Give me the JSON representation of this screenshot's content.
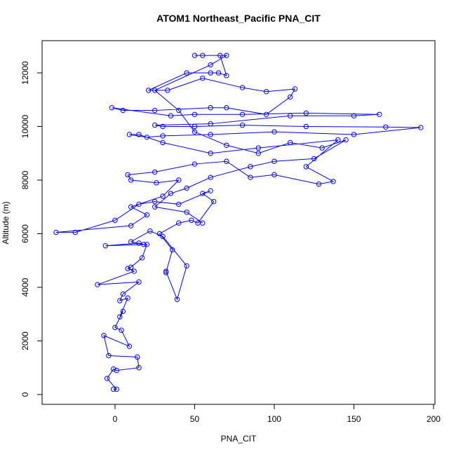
{
  "chart_data": {
    "type": "line",
    "title": "ATOM1 Northeast_Pacific PNA_CIT",
    "x_label": "PNA_CIT",
    "y_label": "Altitude (m)",
    "color": "#0000ff",
    "markers": true,
    "x": [
      -1,
      1,
      -5,
      -1,
      1,
      15,
      14,
      -4,
      -7,
      9,
      4,
      0,
      5,
      3,
      8,
      3,
      5,
      15,
      -11,
      12,
      8,
      10,
      17,
      20,
      -6,
      15,
      18,
      10,
      22,
      30,
      45,
      39,
      32,
      32,
      36,
      28,
      40,
      48,
      52,
      62,
      55,
      60,
      40,
      25,
      15,
      0,
      -25,
      -37,
      10,
      20,
      10,
      30,
      40,
      26,
      10,
      8,
      25,
      50,
      70,
      85,
      100,
      128,
      137,
      120,
      140,
      90,
      60,
      30,
      15,
      9,
      20,
      30,
      60,
      100,
      150,
      192,
      170,
      120,
      80,
      50,
      30,
      25,
      60,
      110,
      150,
      166,
      120,
      80,
      50,
      35,
      -2,
      5,
      25,
      60,
      70,
      95,
      110,
      113,
      95,
      80,
      55,
      33,
      21,
      45,
      60,
      65,
      70,
      66,
      55,
      50,
      70,
      60,
      25,
      40,
      50,
      70,
      90,
      110,
      130,
      145,
      125,
      100,
      85,
      60,
      45,
      35,
      25,
      45,
      55
    ],
    "values": [
      200,
      200,
      600,
      950,
      900,
      1000,
      1400,
      1450,
      2200,
      1800,
      2400,
      2500,
      3100,
      2900,
      3600,
      3500,
      3750,
      4200,
      4100,
      4600,
      4700,
      4750,
      5100,
      5600,
      5550,
      5650,
      5600,
      5700,
      6100,
      5900,
      4800,
      3550,
      4600,
      4550,
      5400,
      6000,
      6400,
      6500,
      6400,
      7200,
      7500,
      7600,
      7100,
      7200,
      7100,
      6500,
      6050,
      6050,
      6300,
      6700,
      7000,
      7400,
      8000,
      7900,
      8000,
      8200,
      8300,
      8600,
      8700,
      8100,
      8200,
      7850,
      7950,
      8500,
      9500,
      9200,
      9000,
      9400,
      9700,
      9700,
      9600,
      9650,
      9700,
      9800,
      9700,
      9960,
      9980,
      10000,
      10050,
      10000,
      10000,
      10050,
      10100,
      10400,
      10400,
      10450,
      10500,
      10450,
      10450,
      10400,
      10700,
      10600,
      10600,
      10700,
      10700,
      10450,
      11100,
      11400,
      11300,
      11450,
      11800,
      11350,
      11350,
      12000,
      12000,
      12000,
      11900,
      12650,
      12650,
      12650,
      12650,
      12300,
      11350,
      10600,
      9800,
      9300,
      9000,
      9400,
      9200,
      9500,
      8800,
      8700,
      8500,
      8100,
      7700,
      7500,
      7000,
      6800,
      6400
    ],
    "xlim": [
      -45.8,
      200.9
    ],
    "ylim": [
      -366,
      13203
    ],
    "xticks": [
      0,
      50,
      100,
      150,
      200
    ],
    "yticks": [
      0,
      2000,
      4000,
      6000,
      8000,
      10000,
      12000
    ]
  }
}
